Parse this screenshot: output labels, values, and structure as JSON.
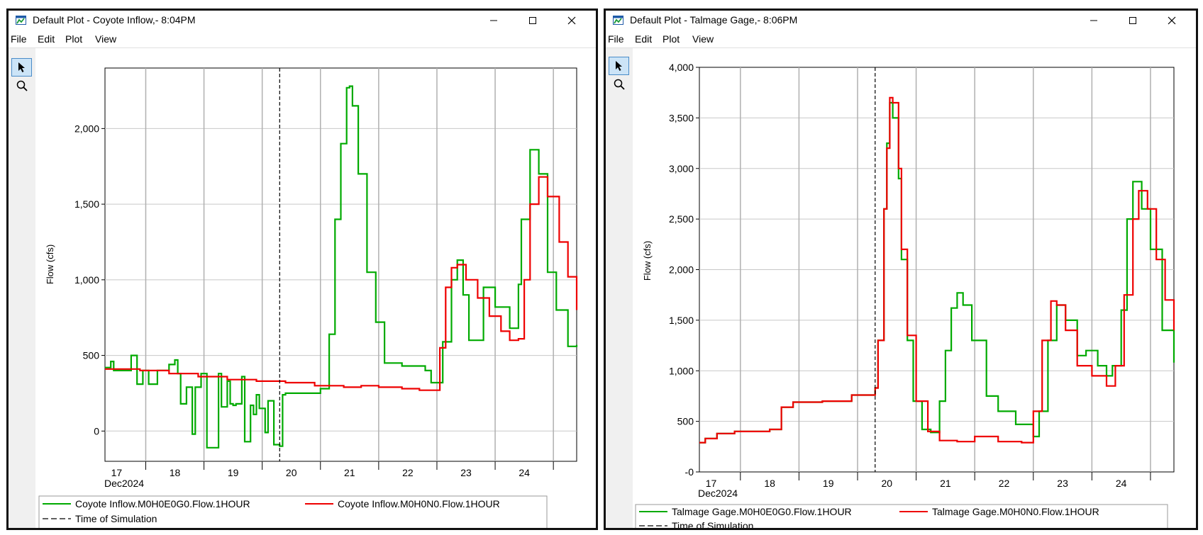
{
  "windows": [
    {
      "title": "Default Plot - Coyote Inflow,- 8:04PM",
      "menu": [
        "File",
        "Edit",
        "Plot",
        "View"
      ],
      "tools": [
        "pointer-icon",
        "zoom-icon"
      ],
      "legend": [
        {
          "label": "Coyote Inflow.M0H0E0G0.Flow.1HOUR",
          "color": "#00aa00",
          "style": "solid"
        },
        {
          "label": "Coyote Inflow.M0H0N0.Flow.1HOUR",
          "color": "#ee0000",
          "style": "solid"
        },
        {
          "label": "Time of Simulation",
          "color": "#000000",
          "style": "dashed"
        }
      ]
    },
    {
      "title": "Default Plot - Talmage Gage,- 8:06PM",
      "menu": [
        "File",
        "Edit",
        "Plot",
        "View"
      ],
      "tools": [
        "pointer-icon",
        "zoom-icon"
      ],
      "legend": [
        {
          "label": "Talmage Gage.M0H0E0G0.Flow.1HOUR",
          "color": "#00aa00",
          "style": "solid"
        },
        {
          "label": "Talmage Gage.M0H0N0.Flow.1HOUR",
          "color": "#ee0000",
          "style": "solid"
        },
        {
          "label": "Time of Simulation",
          "color": "#000000",
          "style": "dashed"
        }
      ]
    }
  ],
  "chart_data": [
    {
      "type": "line",
      "ylabel": "Flow (cfs)",
      "xlabel": "",
      "date_label": "Dec2024",
      "xlim": [
        16.9,
        25.0
      ],
      "ylim": [
        -200,
        2400
      ],
      "yticks": [
        0,
        500,
        1000,
        1500,
        2000
      ],
      "ytick_labels": [
        "0",
        "500",
        "1,000",
        "1,500",
        "2,000"
      ],
      "xticks": [
        17,
        18,
        19,
        20,
        21,
        22,
        23,
        24
      ],
      "xtick_labels": [
        "17",
        "18",
        "19",
        "20",
        "21",
        "22",
        "23",
        "24"
      ],
      "time_of_simulation": 19.9,
      "grid": true,
      "step": true,
      "series": [
        {
          "name": "Coyote Inflow.M0H0E0G0.Flow.1HOUR",
          "color": "#00aa00",
          "x": [
            16.9,
            17.0,
            17.05,
            17.1,
            17.35,
            17.45,
            17.55,
            17.65,
            17.8,
            18.0,
            18.1,
            18.15,
            18.2,
            18.3,
            18.4,
            18.45,
            18.55,
            18.65,
            18.85,
            18.9,
            19.0,
            19.05,
            19.1,
            19.15,
            19.25,
            19.3,
            19.4,
            19.45,
            19.5,
            19.55,
            19.65,
            19.7,
            19.8,
            19.9,
            19.95,
            20.0,
            20.4,
            20.6,
            20.75,
            20.85,
            20.95,
            21.05,
            21.1,
            21.15,
            21.25,
            21.4,
            21.55,
            21.7,
            22.0,
            22.2,
            22.4,
            22.5,
            22.7,
            22.85,
            22.95,
            23.05,
            23.15,
            23.4,
            23.6,
            23.85,
            24.0,
            24.05,
            24.2,
            24.35,
            24.5,
            24.65,
            24.85,
            25.0
          ],
          "y": [
            420,
            460,
            400,
            400,
            500,
            310,
            400,
            310,
            400,
            440,
            470,
            380,
            180,
            290,
            -20,
            290,
            380,
            -110,
            380,
            160,
            330,
            180,
            170,
            180,
            360,
            -70,
            170,
            110,
            240,
            150,
            -10,
            200,
            -90,
            -100,
            240,
            250,
            250,
            280,
            640,
            1400,
            1900,
            2270,
            2280,
            2150,
            1700,
            1050,
            720,
            450,
            430,
            430,
            400,
            320,
            590,
            1000,
            1130,
            900,
            600,
            950,
            820,
            680,
            970,
            1400,
            1860,
            1700,
            1050,
            800,
            560,
            570
          ]
        },
        {
          "name": "Coyote Inflow.M0H0N0.Flow.1HOUR",
          "color": "#ee0000",
          "x": [
            16.9,
            17.5,
            18.0,
            18.5,
            19.0,
            19.5,
            20.0,
            20.5,
            21.0,
            21.3,
            21.6,
            22.0,
            22.3,
            22.55,
            22.65,
            22.75,
            22.85,
            22.95,
            23.1,
            23.3,
            23.5,
            23.7,
            23.85,
            24.0,
            24.1,
            24.2,
            24.35,
            24.5,
            24.7,
            24.85,
            25.0
          ],
          "y": [
            410,
            400,
            380,
            360,
            340,
            330,
            320,
            300,
            290,
            300,
            290,
            280,
            270,
            270,
            550,
            950,
            1080,
            1100,
            1000,
            880,
            760,
            660,
            600,
            610,
            1000,
            1500,
            1680,
            1550,
            1250,
            1020,
            800
          ]
        }
      ]
    },
    {
      "type": "line",
      "ylabel": "Flow (cfs)",
      "xlabel": "",
      "date_label": "Dec2024",
      "xlim": [
        16.9,
        25.0
      ],
      "ylim": [
        0,
        4000
      ],
      "yticks": [
        0,
        500,
        1000,
        1500,
        2000,
        2500,
        3000,
        3500,
        4000
      ],
      "ytick_labels": [
        "-0",
        "500",
        "1,000",
        "1,500",
        "2,000",
        "2,500",
        "3,000",
        "3,500",
        "4,000"
      ],
      "xticks": [
        17,
        18,
        19,
        20,
        21,
        22,
        23,
        24
      ],
      "xtick_labels": [
        "17",
        "18",
        "19",
        "20",
        "21",
        "22",
        "23",
        "24"
      ],
      "time_of_simulation": 19.9,
      "grid": true,
      "step": true,
      "series": [
        {
          "name": "Talmage Gage.M0H0E0G0.Flow.1HOUR",
          "color": "#00aa00",
          "x": [
            16.9,
            17.0,
            17.2,
            17.5,
            17.8,
            18.1,
            18.3,
            18.5,
            19.0,
            19.5,
            19.9,
            19.95,
            20.05,
            20.1,
            20.15,
            20.2,
            20.3,
            20.35,
            20.45,
            20.55,
            20.7,
            20.85,
            21.0,
            21.1,
            21.2,
            21.3,
            21.4,
            21.55,
            21.8,
            22.0,
            22.3,
            22.6,
            22.7,
            22.85,
            23.0,
            23.15,
            23.35,
            23.5,
            23.7,
            23.85,
            23.95,
            24.1,
            24.2,
            24.3,
            24.45,
            24.6,
            24.8,
            25.0
          ],
          "y": [
            290,
            330,
            380,
            400,
            400,
            420,
            640,
            690,
            700,
            760,
            830,
            1300,
            2600,
            3250,
            3650,
            3500,
            2900,
            2100,
            1300,
            700,
            420,
            390,
            700,
            1200,
            1620,
            1770,
            1650,
            1300,
            750,
            600,
            470,
            350,
            600,
            1300,
            1650,
            1500,
            1150,
            1200,
            1050,
            950,
            1050,
            1600,
            2500,
            2870,
            2600,
            2200,
            1400,
            1080
          ]
        },
        {
          "name": "Talmage Gage.M0H0N0.Flow.1HOUR",
          "color": "#ee0000",
          "x": [
            16.9,
            17.0,
            17.2,
            17.5,
            17.8,
            18.1,
            18.3,
            18.5,
            19.0,
            19.5,
            19.9,
            19.95,
            20.05,
            20.1,
            20.15,
            20.2,
            20.3,
            20.35,
            20.45,
            20.6,
            20.8,
            21.0,
            21.3,
            21.6,
            22.0,
            22.4,
            22.6,
            22.75,
            22.9,
            23.0,
            23.15,
            23.35,
            23.6,
            23.85,
            24.0,
            24.15,
            24.3,
            24.4,
            24.55,
            24.7,
            24.85,
            25.0
          ],
          "y": [
            290,
            330,
            380,
            400,
            400,
            420,
            640,
            690,
            700,
            760,
            830,
            1300,
            2600,
            3200,
            3700,
            3650,
            3000,
            2200,
            1350,
            700,
            400,
            310,
            300,
            350,
            300,
            290,
            600,
            1300,
            1690,
            1650,
            1400,
            1050,
            950,
            850,
            1050,
            1750,
            2500,
            2780,
            2600,
            2100,
            1700,
            1400
          ]
        }
      ]
    }
  ]
}
